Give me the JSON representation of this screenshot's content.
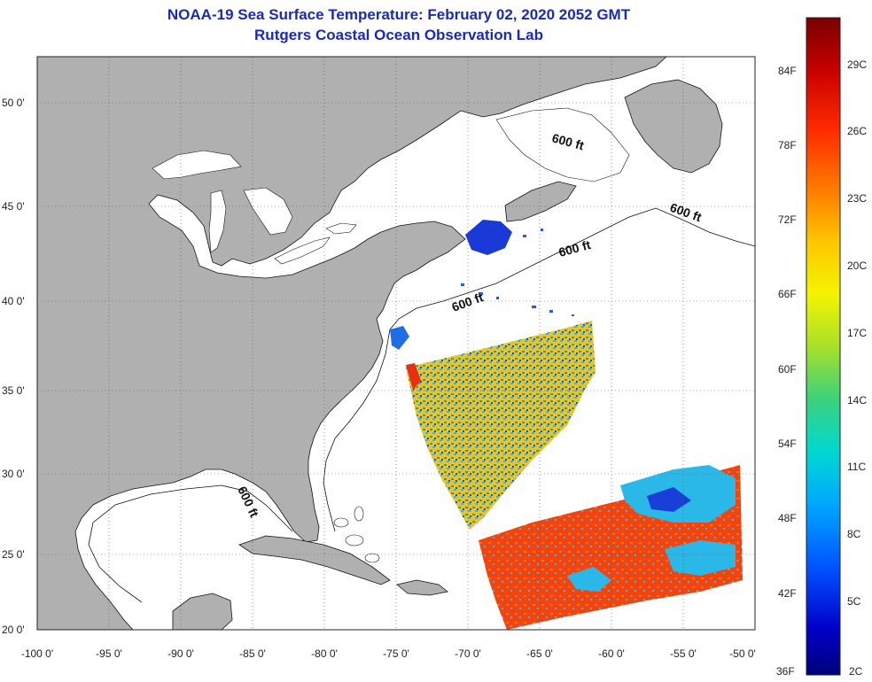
{
  "header": {
    "title": "NOAA-19 Sea Surface Temperature:  February 02, 2020 2052 GMT",
    "subtitle": "Rutgers Coastal Ocean Observation Lab"
  },
  "axes": {
    "lat_labels": [
      "50 0'",
      "45 0'",
      "40 0'",
      "35 0'",
      "30 0'",
      "25 0'",
      "20 0'"
    ],
    "lon_labels": [
      "-100 0'",
      "-95 0'",
      "-90 0'",
      "-85 0'",
      "-80 0'",
      "-75 0'",
      "-70 0'",
      "-65 0'",
      "-60 0'",
      "-55 0'",
      "-50 0'"
    ]
  },
  "contours": {
    "depth_label": "600 ft"
  },
  "colorbar": {
    "fahrenheit_labels": [
      "84F",
      "78F",
      "72F",
      "66F",
      "60F",
      "54F",
      "48F",
      "42F",
      "36F"
    ],
    "celsius_labels": [
      "29C",
      "26C",
      "23C",
      "20C",
      "17C",
      "14C",
      "11C",
      "8C",
      "5C",
      "2C"
    ],
    "gradient_colors": [
      "#7a0000",
      "#c80000",
      "#ff2a00",
      "#ff7a00",
      "#ffc400",
      "#f4f400",
      "#a8e02a",
      "#3cd27a",
      "#00d8d0",
      "#00a8ff",
      "#0050ff",
      "#0000c8",
      "#00007a"
    ]
  },
  "colors": {
    "land": "#b0b0b0",
    "ocean": "#ffffff",
    "title": "#1a2ab8",
    "swath_warm": "#f04a10",
    "swath_mid": "#c8d82a",
    "swath_cool": "#20b0e0",
    "swath_cold": "#1a3ad8"
  }
}
